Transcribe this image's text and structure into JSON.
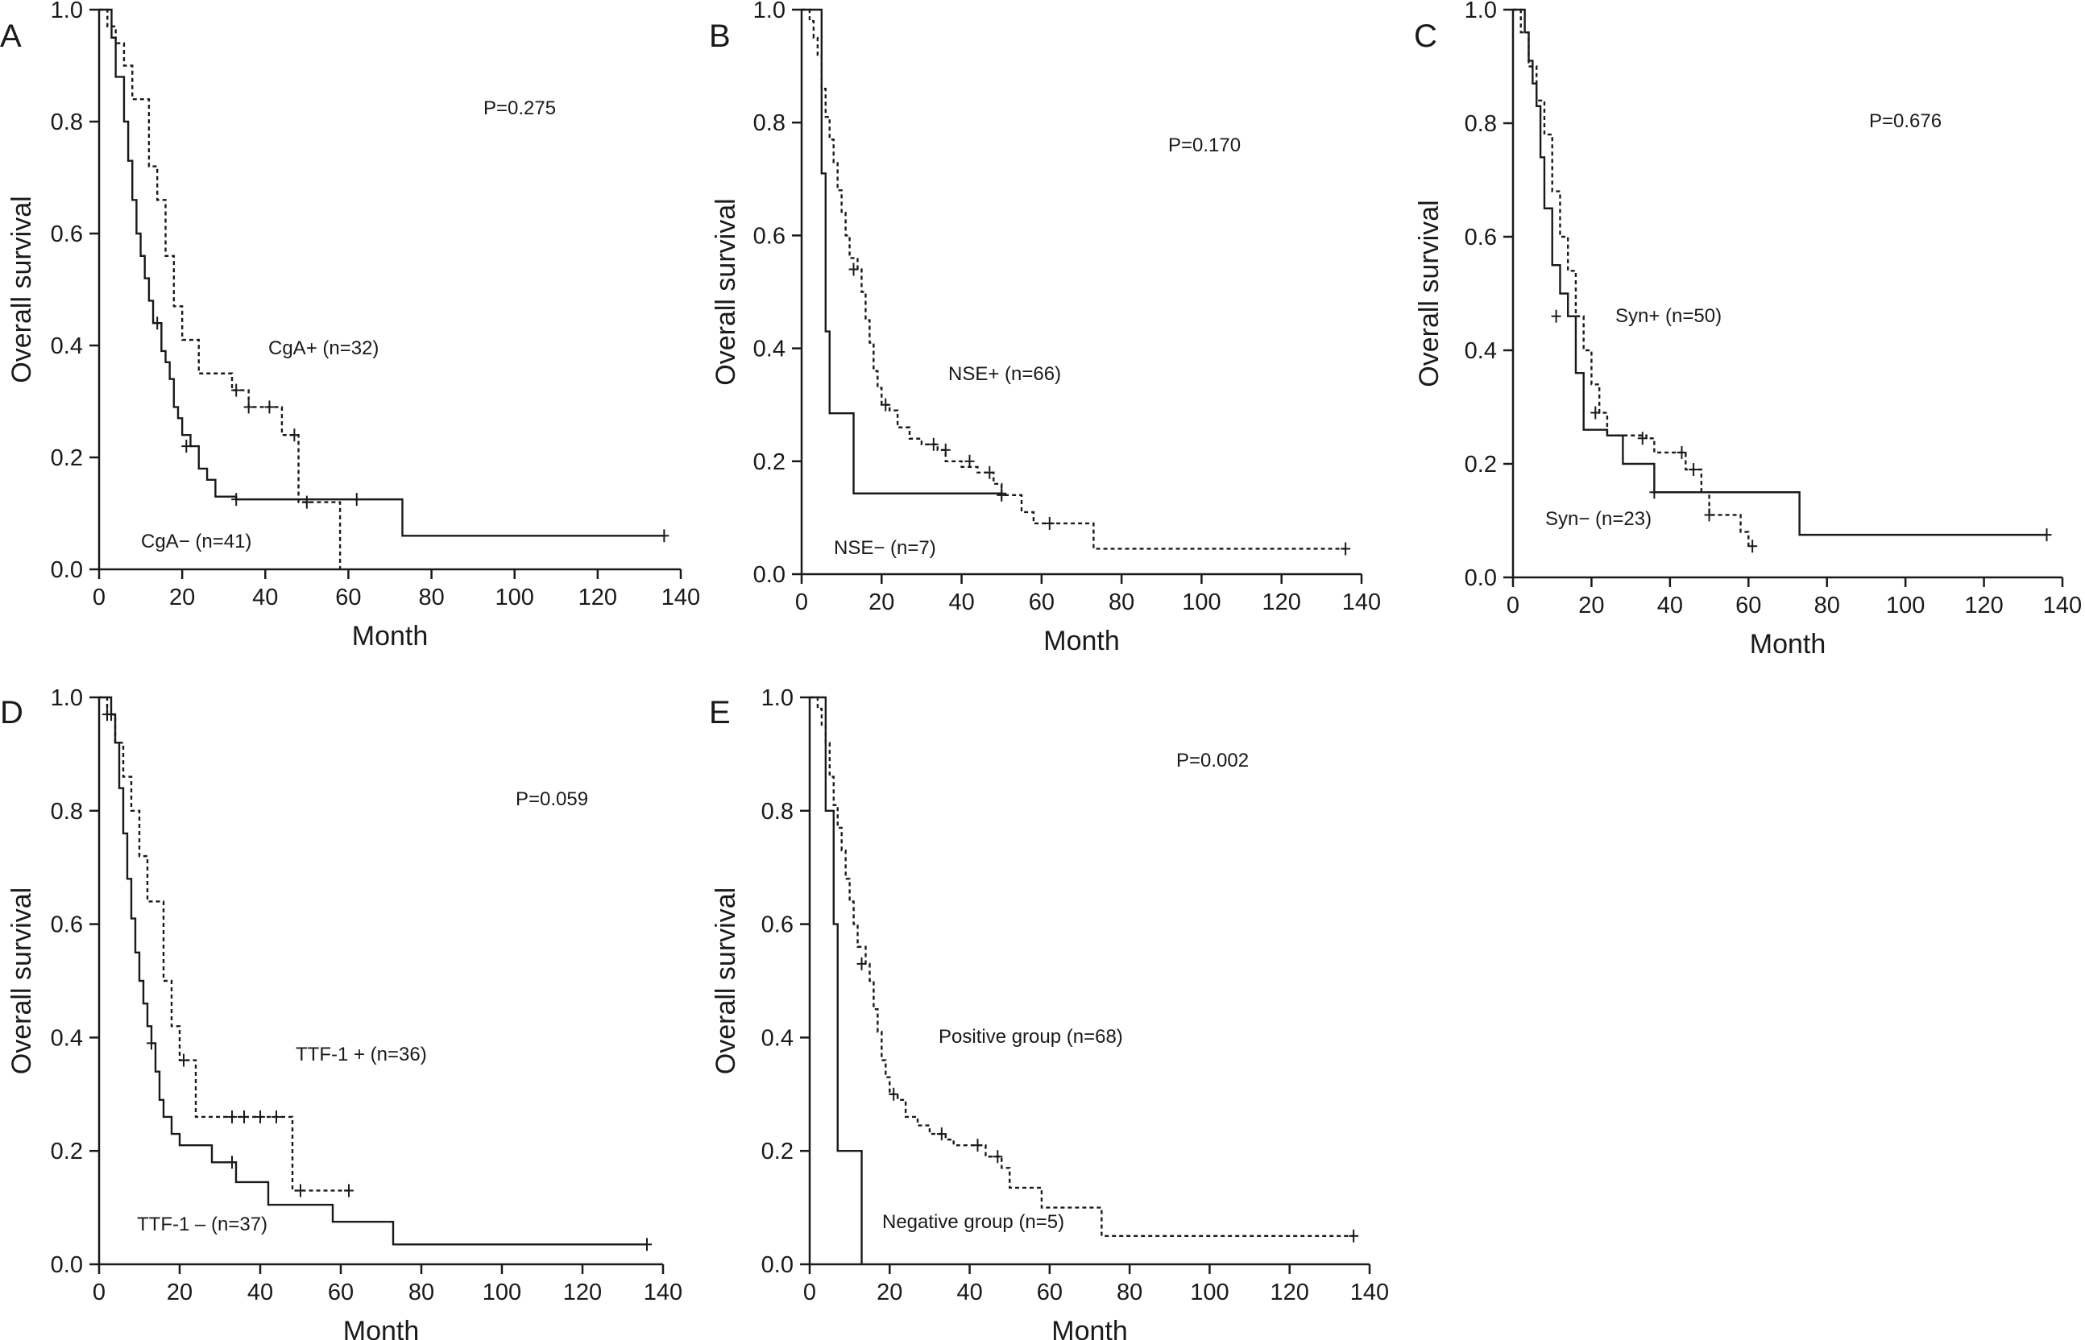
{
  "chart_data": [
    {
      "type": "line",
      "panel": "A",
      "xlabel": "Month",
      "ylabel": "Overall survival",
      "xlim": [
        0,
        140
      ],
      "ylim": [
        0,
        1.0
      ],
      "xticks": [
        "0",
        "20",
        "40",
        "60",
        "80",
        "100",
        "120",
        "140"
      ],
      "yticks": [
        "0.0",
        "0.2",
        "0.4",
        "0.6",
        "0.8",
        "1.0"
      ],
      "p_value": "P=0.275",
      "series": [
        {
          "label": "CgA+ (n=32)",
          "style": "dashed",
          "x": [
            0,
            2,
            4,
            6,
            8,
            10,
            12,
            14,
            16,
            18,
            20,
            24,
            28,
            32,
            36,
            40,
            44,
            48,
            50,
            56,
            58
          ],
          "y": [
            1.0,
            0.97,
            0.94,
            0.9,
            0.84,
            0.84,
            0.72,
            0.66,
            0.56,
            0.47,
            0.41,
            0.35,
            0.35,
            0.32,
            0.29,
            0.29,
            0.24,
            0.12,
            0.12,
            0.12,
            0.0
          ],
          "censored": [
            [
              33,
              0.32
            ],
            [
              36,
              0.29
            ],
            [
              41,
              0.29
            ],
            [
              47,
              0.24
            ],
            [
              50,
              0.12
            ]
          ]
        },
        {
          "label": "CgA− (n=41)",
          "style": "solid",
          "x": [
            0,
            3,
            4,
            6,
            7,
            8,
            9,
            10,
            11,
            12,
            13,
            15,
            16,
            17,
            18,
            19,
            20,
            22,
            24,
            26,
            28,
            33,
            62,
            73,
            136
          ],
          "y": [
            1.0,
            0.95,
            0.88,
            0.8,
            0.73,
            0.66,
            0.6,
            0.56,
            0.52,
            0.48,
            0.44,
            0.39,
            0.37,
            0.34,
            0.29,
            0.27,
            0.24,
            0.22,
            0.18,
            0.16,
            0.13,
            0.125,
            0.125,
            0.06,
            0.06
          ],
          "censored": [
            [
              14,
              0.44
            ],
            [
              21,
              0.22
            ],
            [
              33,
              0.125
            ],
            [
              62,
              0.125
            ],
            [
              136,
              0.06
            ]
          ]
        }
      ]
    },
    {
      "type": "line",
      "panel": "B",
      "xlabel": "Month",
      "ylabel": "Overall survival",
      "xlim": [
        0,
        140
      ],
      "ylim": [
        0,
        1.0
      ],
      "xticks": [
        "0",
        "20",
        "40",
        "60",
        "80",
        "100",
        "120",
        "140"
      ],
      "yticks": [
        "0.0",
        "0.2",
        "0.4",
        "0.6",
        "0.8",
        "1.0"
      ],
      "p_value": "P=0.170",
      "series": [
        {
          "label": "NSE+ (n=66)",
          "style": "dashed",
          "x": [
            0,
            2,
            3,
            4,
            5,
            6,
            7,
            8,
            9,
            10,
            11,
            12,
            14,
            15,
            16,
            17,
            18,
            19,
            20,
            22,
            24,
            27,
            30,
            34,
            36,
            40,
            44,
            48,
            50,
            55,
            58,
            62,
            73,
            136
          ],
          "y": [
            1.0,
            0.98,
            0.95,
            0.92,
            0.86,
            0.81,
            0.77,
            0.73,
            0.68,
            0.64,
            0.6,
            0.56,
            0.54,
            0.5,
            0.45,
            0.41,
            0.36,
            0.33,
            0.3,
            0.29,
            0.26,
            0.24,
            0.23,
            0.22,
            0.2,
            0.19,
            0.18,
            0.16,
            0.14,
            0.11,
            0.09,
            0.09,
            0.045,
            0.045
          ],
          "censored": [
            [
              13,
              0.54
            ],
            [
              21,
              0.3
            ],
            [
              33,
              0.23
            ],
            [
              36,
              0.22
            ],
            [
              42,
              0.2
            ],
            [
              47,
              0.18
            ],
            [
              50,
              0.14
            ],
            [
              62,
              0.09
            ],
            [
              136,
              0.045
            ]
          ]
        },
        {
          "label": "NSE− (n=7)",
          "style": "solid",
          "x": [
            0,
            5,
            6,
            7,
            13,
            50
          ],
          "y": [
            1.0,
            0.71,
            0.43,
            0.285,
            0.143,
            0.143
          ],
          "censored": [
            [
              50,
              0.143
            ]
          ]
        }
      ]
    },
    {
      "type": "line",
      "panel": "C",
      "xlabel": "Month",
      "ylabel": "Overall survival",
      "xlim": [
        0,
        140
      ],
      "ylim": [
        0,
        1.0
      ],
      "xticks": [
        "0",
        "20",
        "40",
        "60",
        "80",
        "100",
        "120",
        "140"
      ],
      "yticks": [
        "0.0",
        "0.2",
        "0.4",
        "0.6",
        "0.8",
        "1.0"
      ],
      "p_value": "P=0.676",
      "series": [
        {
          "label": "Syn+ (n=50)",
          "style": "dashed",
          "x": [
            0,
            2,
            4,
            6,
            8,
            10,
            12,
            14,
            16,
            18,
            20,
            22,
            24,
            30,
            34,
            36,
            40,
            44,
            48,
            50,
            55,
            58,
            60
          ],
          "y": [
            1.0,
            0.96,
            0.9,
            0.84,
            0.78,
            0.68,
            0.6,
            0.54,
            0.46,
            0.4,
            0.34,
            0.29,
            0.25,
            0.25,
            0.245,
            0.22,
            0.22,
            0.19,
            0.15,
            0.11,
            0.11,
            0.08,
            0.055
          ],
          "censored": [
            [
              21,
              0.29
            ],
            [
              33,
              0.245
            ],
            [
              43,
              0.22
            ],
            [
              46,
              0.19
            ],
            [
              50,
              0.11
            ],
            [
              61,
              0.055
            ]
          ]
        },
        {
          "label": "Syn− (n=23)",
          "style": "solid",
          "x": [
            0,
            3,
            4,
            5,
            6,
            7,
            8,
            10,
            12,
            14,
            16,
            18,
            24,
            28,
            36,
            73,
            136
          ],
          "y": [
            1.0,
            0.96,
            0.91,
            0.87,
            0.83,
            0.74,
            0.65,
            0.55,
            0.5,
            0.46,
            0.36,
            0.26,
            0.25,
            0.2,
            0.15,
            0.075,
            0.075
          ],
          "censored": [
            [
              11,
              0.46
            ],
            [
              36,
              0.15
            ],
            [
              136,
              0.075
            ]
          ]
        }
      ]
    },
    {
      "type": "line",
      "panel": "D",
      "xlabel": "Month",
      "ylabel": "Overall survival",
      "xlim": [
        0,
        140
      ],
      "ylim": [
        0,
        1.0
      ],
      "xticks": [
        "0",
        "20",
        "40",
        "60",
        "80",
        "100",
        "120",
        "140"
      ],
      "yticks": [
        "0.0",
        "0.2",
        "0.4",
        "0.6",
        "0.8",
        "1.0"
      ],
      "p_value": "P=0.059",
      "series": [
        {
          "label": "TTF-1 + (n=36)",
          "style": "dashed",
          "x": [
            0,
            2,
            4,
            6,
            8,
            10,
            12,
            14,
            16,
            18,
            20,
            22,
            24,
            30,
            36,
            40,
            44,
            48,
            50,
            62
          ],
          "y": [
            1.0,
            0.97,
            0.92,
            0.86,
            0.8,
            0.72,
            0.64,
            0.64,
            0.5,
            0.42,
            0.36,
            0.36,
            0.26,
            0.26,
            0.26,
            0.26,
            0.26,
            0.13,
            0.13,
            0.13
          ],
          "censored": [
            [
              3,
              0.97
            ],
            [
              21,
              0.36
            ],
            [
              33,
              0.26
            ],
            [
              36,
              0.26
            ],
            [
              40,
              0.26
            ],
            [
              44,
              0.26
            ],
            [
              50,
              0.13
            ],
            [
              62,
              0.13
            ]
          ]
        },
        {
          "label": "TTF-1 – (n=37)",
          "style": "solid",
          "x": [
            0,
            3,
            4,
            5,
            6,
            7,
            8,
            9,
            10,
            11,
            12,
            13,
            14,
            15,
            16,
            18,
            20,
            28,
            34,
            42,
            58,
            73,
            136
          ],
          "y": [
            1.0,
            0.97,
            0.92,
            0.84,
            0.76,
            0.68,
            0.61,
            0.55,
            0.5,
            0.46,
            0.42,
            0.39,
            0.34,
            0.29,
            0.26,
            0.23,
            0.21,
            0.18,
            0.145,
            0.105,
            0.075,
            0.035,
            0.035
          ],
          "censored": [
            [
              2,
              0.97
            ],
            [
              13,
              0.39
            ],
            [
              33,
              0.18
            ],
            [
              136,
              0.035
            ]
          ]
        }
      ]
    },
    {
      "type": "line",
      "panel": "E",
      "xlabel": "Month",
      "ylabel": "Overall survival",
      "xlim": [
        0,
        140
      ],
      "ylim": [
        0,
        1.0
      ],
      "xticks": [
        "0",
        "20",
        "40",
        "60",
        "80",
        "100",
        "120",
        "140"
      ],
      "yticks": [
        "0.0",
        "0.2",
        "0.4",
        "0.6",
        "0.8",
        "1.0"
      ],
      "p_value": "P=0.002",
      "series": [
        {
          "label": "Positive group (n=68)",
          "style": "dashed",
          "x": [
            0,
            2,
            3,
            4,
            5,
            6,
            7,
            8,
            9,
            10,
            11,
            12,
            14,
            15,
            16,
            17,
            18,
            19,
            20,
            22,
            24,
            27,
            30,
            34,
            36,
            40,
            44,
            48,
            50,
            55,
            58,
            62,
            73,
            136
          ],
          "y": [
            1.0,
            0.98,
            0.95,
            0.92,
            0.86,
            0.81,
            0.77,
            0.73,
            0.68,
            0.64,
            0.6,
            0.56,
            0.53,
            0.5,
            0.45,
            0.41,
            0.36,
            0.33,
            0.3,
            0.29,
            0.26,
            0.245,
            0.23,
            0.22,
            0.21,
            0.21,
            0.19,
            0.17,
            0.135,
            0.135,
            0.1,
            0.1,
            0.05,
            0.05
          ],
          "censored": [
            [
              13,
              0.53
            ],
            [
              21,
              0.3
            ],
            [
              33,
              0.23
            ],
            [
              42,
              0.21
            ],
            [
              47,
              0.19
            ],
            [
              136,
              0.05
            ]
          ]
        },
        {
          "label": "Negative group (n=5)",
          "style": "solid",
          "x": [
            0,
            4,
            6,
            7,
            13
          ],
          "y": [
            1.0,
            0.8,
            0.6,
            0.2,
            0.0
          ],
          "censored": []
        }
      ]
    }
  ]
}
